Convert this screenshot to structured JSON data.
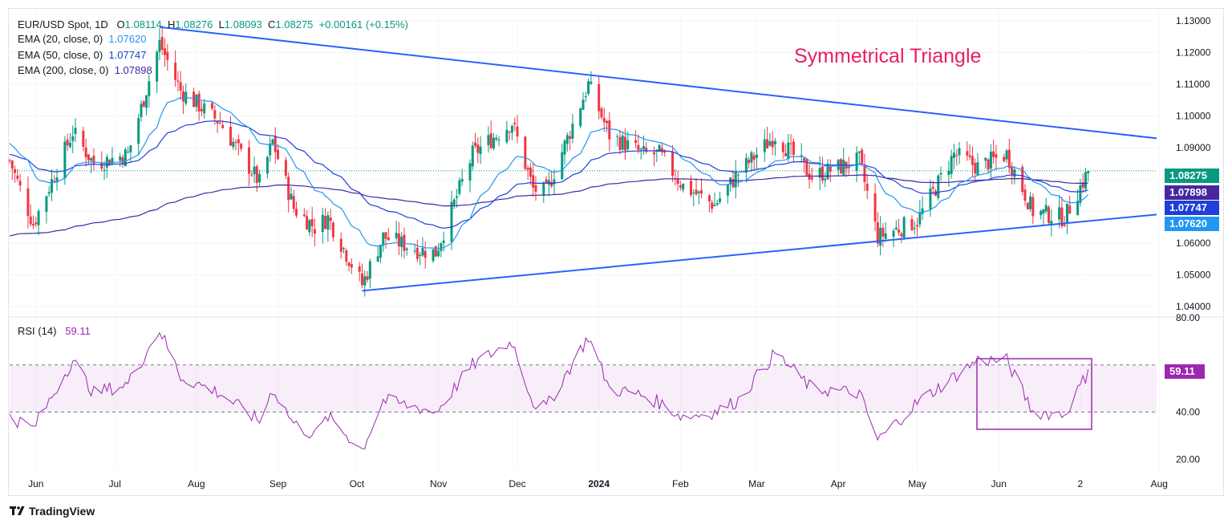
{
  "header": {
    "symbol": "EUR/USD Spot, 1D",
    "open_label": "O",
    "open": "1.08114",
    "high_label": "H",
    "high": "1.08276",
    "low_label": "L",
    "low": "1.08093",
    "close_label": "C",
    "close": "1.08275",
    "change": "+0.00161 (+0.15%)"
  },
  "indicators": [
    {
      "label": "EMA (20, close, 0)",
      "value": "1.07620",
      "color": "#2196f3"
    },
    {
      "label": "EMA (50, close, 0)",
      "value": "1.07747",
      "color": "#1e3fd9"
    },
    {
      "label": "EMA (200, close, 0)",
      "value": "1.07898",
      "color": "#4527a0"
    }
  ],
  "annotation": {
    "text": "Symmetrical Triangle",
    "color": "#e91e63"
  },
  "price_tags": [
    {
      "text": "1.08275",
      "color": "#089981"
    },
    {
      "text": "1.07898",
      "color": "#4527a0"
    },
    {
      "text": "1.07747",
      "color": "#1e3fd9"
    },
    {
      "text": "1.07620",
      "color": "#2196f3"
    }
  ],
  "rsi": {
    "label": "RSI (14)",
    "value": "59.11",
    "color": "#9c27b0"
  },
  "rsi_ticks": [
    "80.00",
    "40.00",
    "20.00"
  ],
  "branding": {
    "name": "TradingView"
  },
  "chart_data": [
    {
      "type": "candlestick",
      "title": "EUR/USD Spot, 1D",
      "x_labels": [
        "Jun",
        "Jul",
        "Aug",
        "Sep",
        "Oct",
        "Nov",
        "Dec",
        "2024",
        "Feb",
        "Mar",
        "Apr",
        "May",
        "Jun",
        "2",
        "Aug"
      ],
      "y_ticks": [
        1.04,
        1.05,
        1.06,
        1.07,
        1.08,
        1.09,
        1.1,
        1.11,
        1.12,
        1.13
      ],
      "ylim": [
        1.037,
        1.133
      ],
      "last_close": 1.08275,
      "price_path": [
        [
          "2023-05-22",
          1.086
        ],
        [
          "2023-05-31",
          1.066
        ],
        [
          "2023-06-15",
          1.095
        ],
        [
          "2023-06-23",
          1.085
        ],
        [
          "2023-07-06",
          1.088
        ],
        [
          "2023-07-18",
          1.123
        ],
        [
          "2023-07-26",
          1.108
        ],
        [
          "2023-08-10",
          1.098
        ],
        [
          "2023-08-25",
          1.079
        ],
        [
          "2023-08-30",
          1.092
        ],
        [
          "2023-09-07",
          1.071
        ],
        [
          "2023-09-15",
          1.065
        ],
        [
          "2023-09-20",
          1.068
        ],
        [
          "2023-10-03",
          1.047
        ],
        [
          "2023-10-11",
          1.062
        ],
        [
          "2023-10-24",
          1.058
        ],
        [
          "2023-10-31",
          1.057
        ],
        [
          "2023-11-14",
          1.088
        ],
        [
          "2023-11-29",
          1.098
        ],
        [
          "2023-12-07",
          1.077
        ],
        [
          "2023-12-12",
          1.076
        ],
        [
          "2023-12-28",
          1.11
        ],
        [
          "2024-01-05",
          1.094
        ],
        [
          "2024-01-18",
          1.088
        ],
        [
          "2024-01-24",
          1.088
        ],
        [
          "2024-02-02",
          1.078
        ],
        [
          "2024-02-14",
          1.072
        ],
        [
          "2024-02-23",
          1.082
        ],
        [
          "2024-03-08",
          1.094
        ],
        [
          "2024-03-22",
          1.081
        ],
        [
          "2024-04-09",
          1.086
        ],
        [
          "2024-04-16",
          1.062
        ],
        [
          "2024-05-01",
          1.067
        ],
        [
          "2024-05-15",
          1.088
        ],
        [
          "2024-05-24",
          1.084
        ],
        [
          "2024-06-04",
          1.088
        ],
        [
          "2024-06-14",
          1.07
        ],
        [
          "2024-06-26",
          1.068
        ],
        [
          "2024-07-04",
          1.081
        ],
        [
          "2024-07-05",
          1.08275
        ]
      ],
      "series": [
        {
          "name": "EMA (20, close, 0)",
          "last": 1.0762
        },
        {
          "name": "EMA (50, close, 0)",
          "last": 1.07747
        },
        {
          "name": "EMA (200, close, 0)",
          "last": 1.07898
        }
      ],
      "trendlines": [
        {
          "from": [
            "2023-07-18",
            1.128
          ],
          "to": [
            "2024-07-31",
            1.093
          ]
        },
        {
          "from": [
            "2023-10-03",
            1.045
          ],
          "to": [
            "2024-07-31",
            1.069
          ]
        }
      ]
    },
    {
      "type": "line",
      "title": "RSI (14)",
      "ylim": [
        15,
        80
      ],
      "bands": [
        40,
        60
      ],
      "last": 59.11,
      "path": [
        [
          "2023-05-22",
          38
        ],
        [
          "2023-05-31",
          33
        ],
        [
          "2023-06-15",
          62
        ],
        [
          "2023-06-23",
          48
        ],
        [
          "2023-07-06",
          52
        ],
        [
          "2023-07-18",
          75
        ],
        [
          "2023-07-26",
          55
        ],
        [
          "2023-08-10",
          48
        ],
        [
          "2023-08-25",
          36
        ],
        [
          "2023-08-30",
          50
        ],
        [
          "2023-09-07",
          35
        ],
        [
          "2023-09-15",
          30
        ],
        [
          "2023-09-20",
          38
        ],
        [
          "2023-10-03",
          24
        ],
        [
          "2023-10-11",
          45
        ],
        [
          "2023-10-24",
          42
        ],
        [
          "2023-10-31",
          40
        ],
        [
          "2023-11-14",
          60
        ],
        [
          "2023-11-29",
          70
        ],
        [
          "2023-12-07",
          44
        ],
        [
          "2023-12-12",
          42
        ],
        [
          "2023-12-28",
          72
        ],
        [
          "2024-01-05",
          50
        ],
        [
          "2024-01-18",
          47
        ],
        [
          "2024-01-24",
          44
        ],
        [
          "2024-02-02",
          38
        ],
        [
          "2024-02-14",
          40
        ],
        [
          "2024-02-23",
          45
        ],
        [
          "2024-03-08",
          65
        ],
        [
          "2024-03-22",
          50
        ],
        [
          "2024-04-09",
          48
        ],
        [
          "2024-04-16",
          28
        ],
        [
          "2024-05-01",
          44
        ],
        [
          "2024-05-15",
          55
        ],
        [
          "2024-05-24",
          62
        ],
        [
          "2024-06-04",
          62
        ],
        [
          "2024-06-14",
          40
        ],
        [
          "2024-06-26",
          39
        ],
        [
          "2024-07-04",
          55
        ],
        [
          "2024-07-05",
          59.11
        ]
      ]
    }
  ]
}
